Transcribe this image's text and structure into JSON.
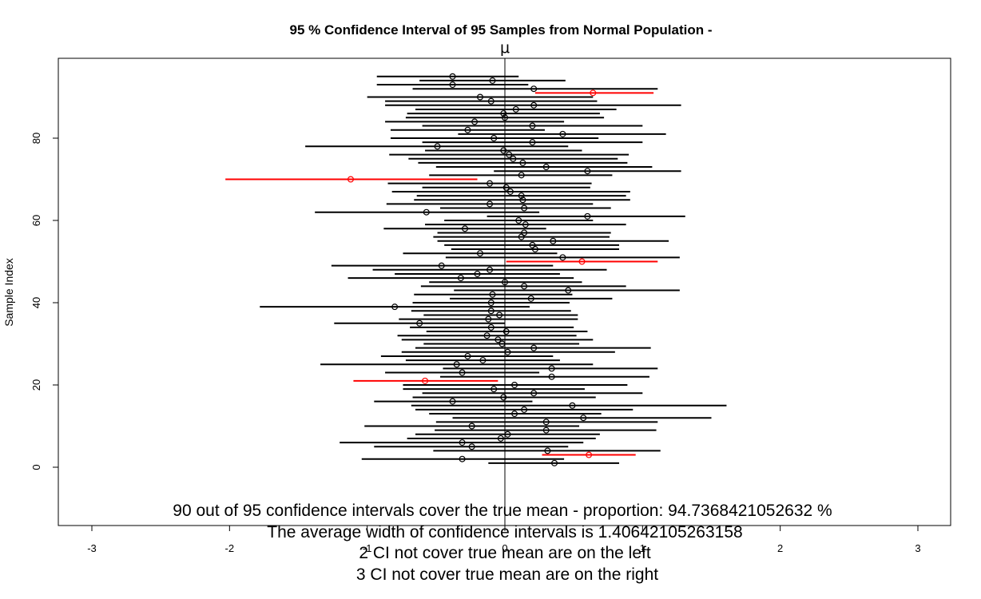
{
  "chart_data": {
    "type": "scatter",
    "title": "95 % Confidence Interval of 95  Samples from Normal Population -",
    "title_symbol": "μ",
    "xlabel": "",
    "ylabel": "Sample Index",
    "xlim": [
      -3.0,
      3.0
    ],
    "ylim": [
      -13,
      99
    ],
    "x_ticks": [
      "-3",
      "-2",
      "-1",
      "0",
      "1",
      "2",
      "3"
    ],
    "y_ticks": [
      "0",
      "20",
      "40",
      "60",
      "80"
    ],
    "true_mean": 0,
    "colors": {
      "covers": "#000000",
      "misses": "#ff0000"
    },
    "intervals": [
      {
        "index": 1,
        "mean": 0.36,
        "lower": -0.12,
        "upper": 0.83,
        "covers": true
      },
      {
        "index": 2,
        "mean": -0.31,
        "lower": -1.04,
        "upper": 0.43,
        "covers": true
      },
      {
        "index": 3,
        "mean": 0.61,
        "lower": 0.27,
        "upper": 0.95,
        "covers": false
      },
      {
        "index": 4,
        "mean": 0.31,
        "lower": -0.52,
        "upper": 1.13,
        "covers": true
      },
      {
        "index": 5,
        "mean": -0.24,
        "lower": -0.95,
        "upper": 0.46,
        "covers": true
      },
      {
        "index": 6,
        "mean": -0.31,
        "lower": -1.2,
        "upper": 0.57,
        "covers": true
      },
      {
        "index": 7,
        "mean": -0.03,
        "lower": -0.71,
        "upper": 0.66,
        "covers": true
      },
      {
        "index": 8,
        "mean": 0.02,
        "lower": -0.65,
        "upper": 0.69,
        "covers": true
      },
      {
        "index": 9,
        "mean": 0.3,
        "lower": -0.51,
        "upper": 1.1,
        "covers": true
      },
      {
        "index": 10,
        "mean": -0.24,
        "lower": -1.02,
        "upper": 0.54,
        "covers": true
      },
      {
        "index": 11,
        "mean": 0.3,
        "lower": -0.5,
        "upper": 1.11,
        "covers": true
      },
      {
        "index": 12,
        "mean": 0.57,
        "lower": -0.38,
        "upper": 1.5,
        "covers": true
      },
      {
        "index": 13,
        "mean": 0.07,
        "lower": -0.55,
        "upper": 0.7,
        "covers": true
      },
      {
        "index": 14,
        "mean": 0.14,
        "lower": -0.65,
        "upper": 0.93,
        "covers": true
      },
      {
        "index": 15,
        "mean": 0.49,
        "lower": -0.68,
        "upper": 1.61,
        "covers": true
      },
      {
        "index": 16,
        "mean": -0.38,
        "lower": -0.95,
        "upper": 0.2,
        "covers": true
      },
      {
        "index": 17,
        "mean": -0.01,
        "lower": -0.67,
        "upper": 0.66,
        "covers": true
      },
      {
        "index": 18,
        "mean": 0.21,
        "lower": -0.6,
        "upper": 1.0,
        "covers": true
      },
      {
        "index": 19,
        "mean": -0.08,
        "lower": -0.74,
        "upper": 0.58,
        "covers": true
      },
      {
        "index": 20,
        "mean": 0.07,
        "lower": -0.74,
        "upper": 0.89,
        "covers": true
      },
      {
        "index": 21,
        "mean": -0.58,
        "lower": -1.1,
        "upper": -0.05,
        "covers": false
      },
      {
        "index": 22,
        "mean": 0.34,
        "lower": -0.47,
        "upper": 1.05,
        "covers": true
      },
      {
        "index": 23,
        "mean": -0.31,
        "lower": -0.87,
        "upper": 0.25,
        "covers": true
      },
      {
        "index": 24,
        "mean": 0.34,
        "lower": -0.45,
        "upper": 1.11,
        "covers": true
      },
      {
        "index": 25,
        "mean": -0.35,
        "lower": -1.34,
        "upper": 0.64,
        "covers": true
      },
      {
        "index": 26,
        "mean": -0.16,
        "lower": -0.72,
        "upper": 0.4,
        "covers": true
      },
      {
        "index": 27,
        "mean": -0.27,
        "lower": -0.9,
        "upper": 0.35,
        "covers": true
      },
      {
        "index": 28,
        "mean": 0.02,
        "lower": -0.75,
        "upper": 0.8,
        "covers": true
      },
      {
        "index": 29,
        "mean": 0.21,
        "lower": -0.65,
        "upper": 1.06,
        "covers": true
      },
      {
        "index": 30,
        "mean": -0.02,
        "lower": -0.59,
        "upper": 0.54,
        "covers": true
      },
      {
        "index": 31,
        "mean": -0.05,
        "lower": -0.75,
        "upper": 0.64,
        "covers": true
      },
      {
        "index": 32,
        "mean": -0.13,
        "lower": -0.78,
        "upper": 0.52,
        "covers": true
      },
      {
        "index": 33,
        "mean": 0.01,
        "lower": -0.57,
        "upper": 0.6,
        "covers": true
      },
      {
        "index": 34,
        "mean": -0.1,
        "lower": -0.69,
        "upper": 0.5,
        "covers": true
      },
      {
        "index": 35,
        "mean": -0.62,
        "lower": -1.24,
        "upper": 0.0,
        "covers": true
      },
      {
        "index": 36,
        "mean": -0.12,
        "lower": -0.77,
        "upper": 0.53,
        "covers": true
      },
      {
        "index": 37,
        "mean": -0.04,
        "lower": -0.59,
        "upper": 0.53,
        "covers": true
      },
      {
        "index": 38,
        "mean": -0.1,
        "lower": -0.68,
        "upper": 0.48,
        "covers": true
      },
      {
        "index": 39,
        "mean": -0.8,
        "lower": -1.78,
        "upper": 0.18,
        "covers": true
      },
      {
        "index": 40,
        "mean": -0.1,
        "lower": -0.67,
        "upper": 0.47,
        "covers": true
      },
      {
        "index": 41,
        "mean": 0.19,
        "lower": -0.4,
        "upper": 0.78,
        "covers": true
      },
      {
        "index": 42,
        "mean": -0.09,
        "lower": -0.66,
        "upper": 0.49,
        "covers": true
      },
      {
        "index": 43,
        "mean": 0.46,
        "lower": -0.37,
        "upper": 1.27,
        "covers": true
      },
      {
        "index": 44,
        "mean": 0.14,
        "lower": -0.61,
        "upper": 0.88,
        "covers": true
      },
      {
        "index": 45,
        "mean": 0.0,
        "lower": -0.55,
        "upper": 0.56,
        "covers": true
      },
      {
        "index": 46,
        "mean": -0.32,
        "lower": -1.14,
        "upper": 0.5,
        "covers": true
      },
      {
        "index": 47,
        "mean": -0.2,
        "lower": -0.8,
        "upper": 0.4,
        "covers": true
      },
      {
        "index": 48,
        "mean": -0.11,
        "lower": -0.96,
        "upper": 0.74,
        "covers": true
      },
      {
        "index": 49,
        "mean": -0.46,
        "lower": -1.26,
        "upper": 0.35,
        "covers": true
      },
      {
        "index": 50,
        "mean": 0.56,
        "lower": 0.01,
        "upper": 1.11,
        "covers": false
      },
      {
        "index": 51,
        "mean": 0.42,
        "lower": -0.43,
        "upper": 1.27,
        "covers": true
      },
      {
        "index": 52,
        "mean": -0.18,
        "lower": -0.74,
        "upper": 0.38,
        "covers": true
      },
      {
        "index": 53,
        "mean": 0.22,
        "lower": -0.39,
        "upper": 0.83,
        "covers": true
      },
      {
        "index": 54,
        "mean": 0.2,
        "lower": -0.44,
        "upper": 0.83,
        "covers": true
      },
      {
        "index": 55,
        "mean": 0.35,
        "lower": -0.49,
        "upper": 1.19,
        "covers": true
      },
      {
        "index": 56,
        "mean": 0.12,
        "lower": -0.52,
        "upper": 0.76,
        "covers": true
      },
      {
        "index": 57,
        "mean": 0.14,
        "lower": -0.49,
        "upper": 0.77,
        "covers": true
      },
      {
        "index": 58,
        "mean": -0.29,
        "lower": -0.88,
        "upper": 0.3,
        "covers": true
      },
      {
        "index": 59,
        "mean": 0.15,
        "lower": -0.58,
        "upper": 0.88,
        "covers": true
      },
      {
        "index": 60,
        "mean": 0.1,
        "lower": -0.44,
        "upper": 0.64,
        "covers": true
      },
      {
        "index": 61,
        "mean": 0.6,
        "lower": -0.13,
        "upper": 1.31,
        "covers": true
      },
      {
        "index": 62,
        "mean": -0.57,
        "lower": -1.38,
        "upper": 0.25,
        "covers": true
      },
      {
        "index": 63,
        "mean": 0.14,
        "lower": -0.47,
        "upper": 0.77,
        "covers": true
      },
      {
        "index": 64,
        "mean": -0.11,
        "lower": -0.86,
        "upper": 0.64,
        "covers": true
      },
      {
        "index": 65,
        "mean": 0.13,
        "lower": -0.66,
        "upper": 0.91,
        "covers": true
      },
      {
        "index": 66,
        "mean": 0.12,
        "lower": -0.64,
        "upper": 0.88,
        "covers": true
      },
      {
        "index": 67,
        "mean": 0.04,
        "lower": -0.82,
        "upper": 0.91,
        "covers": true
      },
      {
        "index": 68,
        "mean": 0.01,
        "lower": -0.6,
        "upper": 0.62,
        "covers": true
      },
      {
        "index": 69,
        "mean": -0.11,
        "lower": -0.85,
        "upper": 0.63,
        "covers": true
      },
      {
        "index": 70,
        "mean": -1.12,
        "lower": -2.03,
        "upper": -0.2,
        "covers": false
      },
      {
        "index": 71,
        "mean": 0.12,
        "lower": -0.55,
        "upper": 0.78,
        "covers": true
      },
      {
        "index": 72,
        "mean": 0.6,
        "lower": -0.08,
        "upper": 1.28,
        "covers": true
      },
      {
        "index": 73,
        "mean": 0.3,
        "lower": -0.5,
        "upper": 1.07,
        "covers": true
      },
      {
        "index": 74,
        "mean": 0.13,
        "lower": -0.63,
        "upper": 0.89,
        "covers": true
      },
      {
        "index": 75,
        "mean": 0.06,
        "lower": -0.7,
        "upper": 0.82,
        "covers": true
      },
      {
        "index": 76,
        "mean": 0.03,
        "lower": -0.84,
        "upper": 0.9,
        "covers": true
      },
      {
        "index": 77,
        "mean": -0.01,
        "lower": -0.58,
        "upper": 0.56,
        "covers": true
      },
      {
        "index": 78,
        "mean": -0.49,
        "lower": -1.45,
        "upper": 0.46,
        "covers": true
      },
      {
        "index": 79,
        "mean": 0.2,
        "lower": -0.6,
        "upper": 1.0,
        "covers": true
      },
      {
        "index": 80,
        "mean": -0.08,
        "lower": -0.83,
        "upper": 0.68,
        "covers": true
      },
      {
        "index": 81,
        "mean": 0.42,
        "lower": -0.34,
        "upper": 1.17,
        "covers": true
      },
      {
        "index": 82,
        "mean": -0.27,
        "lower": -0.83,
        "upper": 0.29,
        "covers": true
      },
      {
        "index": 83,
        "mean": 0.2,
        "lower": -0.6,
        "upper": 1.0,
        "covers": true
      },
      {
        "index": 84,
        "mean": -0.22,
        "lower": -0.87,
        "upper": 0.43,
        "covers": true
      },
      {
        "index": 85,
        "mean": 0.0,
        "lower": -0.72,
        "upper": 0.72,
        "covers": true
      },
      {
        "index": 86,
        "mean": -0.01,
        "lower": -0.71,
        "upper": 0.69,
        "covers": true
      },
      {
        "index": 87,
        "mean": 0.08,
        "lower": -0.65,
        "upper": 0.81,
        "covers": true
      },
      {
        "index": 88,
        "mean": 0.21,
        "lower": -0.87,
        "upper": 1.28,
        "covers": true
      },
      {
        "index": 89,
        "mean": -0.1,
        "lower": -0.87,
        "upper": 0.67,
        "covers": true
      },
      {
        "index": 90,
        "mean": -0.18,
        "lower": -1.0,
        "upper": 0.64,
        "covers": true
      },
      {
        "index": 91,
        "mean": 0.64,
        "lower": 0.22,
        "upper": 1.08,
        "covers": false
      },
      {
        "index": 92,
        "mean": 0.21,
        "lower": -0.67,
        "upper": 1.11,
        "covers": true
      },
      {
        "index": 93,
        "mean": -0.38,
        "lower": -0.93,
        "upper": 0.17,
        "covers": true
      },
      {
        "index": 94,
        "mean": -0.09,
        "lower": -0.62,
        "upper": 0.44,
        "covers": true
      },
      {
        "index": 95,
        "mean": -0.38,
        "lower": -0.93,
        "upper": 0.1,
        "covers": true
      }
    ],
    "annotations": [
      "90 out of 95 confidence intervals cover the true mean - proportion: 94.7368421052632 %",
      "The average width of confidence intervals is 1.40642105263158",
      "2 CI not cover true mean are on the left",
      "3 CI not cover true mean are on the right"
    ]
  }
}
